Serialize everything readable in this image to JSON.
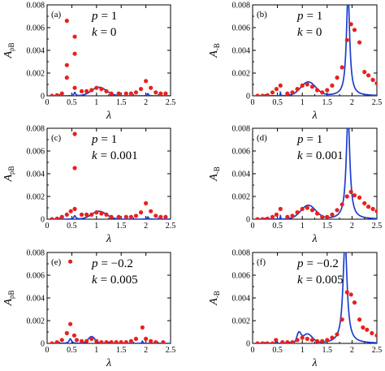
{
  "chart_data": [
    {
      "type": "line",
      "tag": "(a)",
      "ylabel_main": "A",
      "ylabel_sub": "ρB",
      "xlabel": "λ",
      "param_p_name": "p",
      "param_p_value": "= 1",
      "param_k_name": "k",
      "param_k_value": "= 0",
      "xlim": [
        0,
        2.5
      ],
      "ylim": [
        0,
        0.008
      ],
      "xticks": [
        "0",
        "0.5",
        "1",
        "1.5",
        "2",
        "2.5"
      ],
      "yticks": [
        "0",
        "0.002",
        "0.004",
        "0.006",
        "0.008"
      ],
      "line": {
        "peaks": [
          {
            "x0": 0.56,
            "gamma": 0.02,
            "amp": 0.0003
          },
          {
            "x0": 2.04,
            "gamma": 0.015,
            "amp": 0.0002
          }
        ],
        "bumps": [
          {
            "x0": 1.05,
            "sigma": 0.15,
            "amp": 0.00075
          }
        ],
        "xmin": 0.05,
        "xmax": 2.5
      },
      "points": [
        [
          0.1,
          0.0
        ],
        [
          0.2,
          5e-05
        ],
        [
          0.3,
          0.0002
        ],
        [
          0.4,
          0.0016
        ],
        [
          0.4,
          0.0027
        ],
        [
          0.4,
          0.0066
        ],
        [
          0.56,
          0.0052
        ],
        [
          0.56,
          0.0037
        ],
        [
          0.56,
          0.0007
        ],
        [
          0.7,
          0.0004
        ],
        [
          0.8,
          0.0004
        ],
        [
          0.9,
          0.0005
        ],
        [
          1.0,
          0.0007
        ],
        [
          1.1,
          0.0006
        ],
        [
          1.2,
          0.0004
        ],
        [
          1.3,
          0.0002
        ],
        [
          1.45,
          0.0002
        ],
        [
          1.6,
          0.0002
        ],
        [
          1.7,
          0.0002
        ],
        [
          1.8,
          0.0003
        ],
        [
          1.9,
          0.0006
        ],
        [
          2.0,
          0.0013
        ],
        [
          2.1,
          0.0007
        ],
        [
          2.2,
          0.0003
        ],
        [
          2.3,
          0.0002
        ],
        [
          2.4,
          0.0002
        ]
      ]
    },
    {
      "type": "line",
      "tag": "(b)",
      "ylabel_main": "A",
      "ylabel_sub": "-B",
      "xlabel": "λ",
      "param_p_name": "p",
      "param_p_value": "= 1",
      "param_k_name": "k",
      "param_k_value": "= 0",
      "xlim": [
        0,
        2.5
      ],
      "ylim": [
        0,
        0.008
      ],
      "xticks": [
        "0",
        "0.5",
        "1",
        "1.5",
        "2",
        "2.5"
      ],
      "yticks": [
        "0",
        "0.002",
        "0.004",
        "0.006",
        "0.008"
      ],
      "line": {
        "peaks": [
          {
            "x0": 0.56,
            "gamma": 0.006,
            "amp": 0.0003
          },
          {
            "x0": 1.92,
            "gamma": 0.04,
            "amp": 0.009
          }
        ],
        "bumps": [
          {
            "x0": 1.12,
            "sigma": 0.15,
            "amp": 0.0012
          }
        ],
        "xmin": 0.05,
        "xmax": 2.5
      },
      "points": [
        [
          0.1,
          0.0
        ],
        [
          0.2,
          0.0
        ],
        [
          0.3,
          5e-05
        ],
        [
          0.4,
          0.0003
        ],
        [
          0.48,
          0.0006
        ],
        [
          0.56,
          0.0009
        ],
        [
          0.7,
          0.0002
        ],
        [
          0.8,
          0.0003
        ],
        [
          0.9,
          0.0006
        ],
        [
          1.0,
          0.0009
        ],
        [
          1.1,
          0.001
        ],
        [
          1.2,
          0.0008
        ],
        [
          1.3,
          0.0005
        ],
        [
          1.4,
          0.0003
        ],
        [
          1.5,
          0.0005
        ],
        [
          1.6,
          0.0009
        ],
        [
          1.7,
          0.0016
        ],
        [
          1.8,
          0.0025
        ],
        [
          1.9,
          0.0049
        ],
        [
          1.98,
          0.0063
        ],
        [
          2.05,
          0.0058
        ],
        [
          2.15,
          0.0047
        ],
        [
          2.25,
          0.0021
        ],
        [
          2.33,
          0.0018
        ],
        [
          2.42,
          0.0014
        ],
        [
          2.5,
          0.0011
        ]
      ]
    },
    {
      "type": "line",
      "tag": "(c)",
      "ylabel_main": "A",
      "ylabel_sub": "ρB",
      "xlabel": "λ",
      "param_p_name": "p",
      "param_p_value": "= 1",
      "param_k_name": "k",
      "param_k_value": "= 0.001",
      "xlim": [
        0,
        2.5
      ],
      "ylim": [
        0,
        0.008
      ],
      "xticks": [
        "0",
        "0.5",
        "1",
        "1.5",
        "2",
        "2.5"
      ],
      "yticks": [
        "0",
        "0.002",
        "0.004",
        "0.006",
        "0.008"
      ],
      "line": {
        "peaks": [
          {
            "x0": 0.56,
            "gamma": 0.025,
            "amp": 0.0003
          },
          {
            "x0": 2.04,
            "gamma": 0.018,
            "amp": 0.0002
          }
        ],
        "bumps": [
          {
            "x0": 1.05,
            "sigma": 0.15,
            "amp": 0.0007
          }
        ],
        "xmin": 0.05,
        "xmax": 2.5
      },
      "points": [
        [
          0.1,
          0.0
        ],
        [
          0.2,
          5e-05
        ],
        [
          0.3,
          0.0002
        ],
        [
          0.4,
          0.0004
        ],
        [
          0.48,
          0.0007
        ],
        [
          0.56,
          0.0075
        ],
        [
          0.56,
          0.0045
        ],
        [
          0.56,
          0.0009
        ],
        [
          0.7,
          0.0004
        ],
        [
          0.8,
          0.0004
        ],
        [
          0.9,
          0.0004
        ],
        [
          1.0,
          0.0006
        ],
        [
          1.1,
          0.0005
        ],
        [
          1.2,
          0.0004
        ],
        [
          1.3,
          0.0002
        ],
        [
          1.45,
          0.0002
        ],
        [
          1.6,
          0.0002
        ],
        [
          1.7,
          0.0002
        ],
        [
          1.8,
          0.0003
        ],
        [
          1.9,
          0.0006
        ],
        [
          2.0,
          0.0014
        ],
        [
          2.1,
          0.0007
        ],
        [
          2.2,
          0.0003
        ],
        [
          2.3,
          0.0002
        ],
        [
          2.4,
          0.0002
        ]
      ]
    },
    {
      "type": "line",
      "tag": "(d)",
      "ylabel_main": "A",
      "ylabel_sub": "-B",
      "xlabel": "λ",
      "param_p_name": "p",
      "param_p_value": "= 1",
      "param_k_name": "k",
      "param_k_value": "= 0.001",
      "xlim": [
        0,
        2.5
      ],
      "ylim": [
        0,
        0.008
      ],
      "xticks": [
        "0",
        "0.5",
        "1",
        "1.5",
        "2",
        "2.5"
      ],
      "yticks": [
        "0",
        "0.002",
        "0.004",
        "0.006",
        "0.008"
      ],
      "line": {
        "peaks": [
          {
            "x0": 0.56,
            "gamma": 0.006,
            "amp": 0.0003
          },
          {
            "x0": 1.92,
            "gamma": 0.045,
            "amp": 0.009
          }
        ],
        "bumps": [
          {
            "x0": 1.12,
            "sigma": 0.15,
            "amp": 0.0012
          }
        ],
        "xmin": 0.05,
        "xmax": 2.5
      },
      "points": [
        [
          0.1,
          0.0
        ],
        [
          0.2,
          0.0
        ],
        [
          0.3,
          5e-05
        ],
        [
          0.4,
          0.0002
        ],
        [
          0.48,
          0.0004
        ],
        [
          0.56,
          0.0009
        ],
        [
          0.7,
          0.0002
        ],
        [
          0.8,
          0.0003
        ],
        [
          0.9,
          0.0006
        ],
        [
          1.0,
          0.0009
        ],
        [
          1.1,
          0.001
        ],
        [
          1.2,
          0.0008
        ],
        [
          1.3,
          0.0005
        ],
        [
          1.4,
          0.0002
        ],
        [
          1.5,
          0.0002
        ],
        [
          1.6,
          0.0004
        ],
        [
          1.7,
          0.0008
        ],
        [
          1.8,
          0.0013
        ],
        [
          1.9,
          0.002
        ],
        [
          1.98,
          0.0024
        ],
        [
          2.05,
          0.0021
        ],
        [
          2.15,
          0.0019
        ],
        [
          2.25,
          0.0014
        ],
        [
          2.33,
          0.0011
        ],
        [
          2.42,
          0.0009
        ],
        [
          2.5,
          0.0007
        ]
      ]
    },
    {
      "type": "line",
      "tag": "(e)",
      "ylabel_main": "A",
      "ylabel_sub": "ρB",
      "xlabel": "λ",
      "param_p_name": "p",
      "param_p_value": "= −0.2",
      "param_k_name": "k",
      "param_k_value": "= 0.005",
      "xlim": [
        0,
        2.5
      ],
      "ylim": [
        0,
        0.008
      ],
      "xticks": [
        "0",
        "0.5",
        "1",
        "1.5",
        "2",
        "2.5"
      ],
      "yticks": [
        "0",
        "0.002",
        "0.004",
        "0.006",
        "0.008"
      ],
      "line": {
        "peaks": [
          {
            "x0": 0.47,
            "gamma": 0.03,
            "amp": 0.0004
          },
          {
            "x0": 1.93,
            "gamma": 0.012,
            "amp": 0.0002
          }
        ],
        "bumps": [
          {
            "x0": 0.9,
            "sigma": 0.07,
            "amp": 0.0006
          }
        ],
        "xmin": 0.05,
        "xmax": 2.5
      },
      "points": [
        [
          0.1,
          0.0
        ],
        [
          0.2,
          0.0001
        ],
        [
          0.3,
          0.0003
        ],
        [
          0.4,
          0.0009
        ],
        [
          0.47,
          0.0072
        ],
        [
          0.47,
          0.0017
        ],
        [
          0.55,
          0.0007
        ],
        [
          0.6,
          0.0003
        ],
        [
          0.7,
          0.0002
        ],
        [
          0.8,
          0.0002
        ],
        [
          0.9,
          0.0004
        ],
        [
          1.0,
          0.0002
        ],
        [
          1.1,
          0.0001
        ],
        [
          1.2,
          0.0001
        ],
        [
          1.3,
          0.0001
        ],
        [
          1.4,
          0.0001
        ],
        [
          1.5,
          0.0001
        ],
        [
          1.6,
          0.0001
        ],
        [
          1.7,
          0.0002
        ],
        [
          1.8,
          0.0004
        ],
        [
          1.93,
          0.0014
        ],
        [
          2.0,
          0.0004
        ],
        [
          2.1,
          0.0002
        ],
        [
          2.2,
          0.0001
        ],
        [
          2.35,
          0.0001
        ]
      ]
    },
    {
      "type": "line",
      "tag": "(f)",
      "ylabel_main": "A",
      "ylabel_sub": "-B",
      "xlabel": "λ",
      "param_p_name": "p",
      "param_p_value": "= −0.2",
      "param_k_name": "k",
      "param_k_value": "= 0.005",
      "xlim": [
        0,
        2.5
      ],
      "ylim": [
        0,
        0.008
      ],
      "xticks": [
        "0",
        "0.5",
        "1",
        "1.5",
        "2",
        "2.5"
      ],
      "yticks": [
        "0",
        "0.002",
        "0.004",
        "0.006",
        "0.008"
      ],
      "line": {
        "peaks": [
          {
            "x0": 0.47,
            "gamma": 0.005,
            "amp": 0.0003
          },
          {
            "x0": 1.86,
            "gamma": 0.05,
            "amp": 0.009
          }
        ],
        "bumps": [
          {
            "x0": 0.93,
            "sigma": 0.04,
            "amp": 0.0008
          },
          {
            "x0": 1.1,
            "sigma": 0.1,
            "amp": 0.0008
          }
        ],
        "xmin": 0.05,
        "xmax": 2.5
      },
      "points": [
        [
          0.1,
          0.0
        ],
        [
          0.2,
          0.0
        ],
        [
          0.3,
          0.0
        ],
        [
          0.4,
          0.0
        ],
        [
          0.47,
          0.0003
        ],
        [
          0.6,
          0.0001
        ],
        [
          0.7,
          0.0001
        ],
        [
          0.8,
          0.0001
        ],
        [
          0.9,
          0.0003
        ],
        [
          1.0,
          0.0005
        ],
        [
          1.1,
          0.0004
        ],
        [
          1.2,
          0.0003
        ],
        [
          1.3,
          0.0002
        ],
        [
          1.4,
          0.0002
        ],
        [
          1.5,
          0.0003
        ],
        [
          1.6,
          0.0005
        ],
        [
          1.7,
          0.0008
        ],
        [
          1.8,
          0.0021
        ],
        [
          1.9,
          0.0045
        ],
        [
          1.98,
          0.0043
        ],
        [
          2.05,
          0.0036
        ],
        [
          2.15,
          0.0021
        ],
        [
          2.22,
          0.0014
        ],
        [
          2.3,
          0.0012
        ],
        [
          2.4,
          0.0009
        ],
        [
          2.5,
          0.0007
        ]
      ]
    }
  ],
  "colors": {
    "line": "#1c3fd0",
    "points": "#e8211c",
    "axis": "#000000"
  }
}
